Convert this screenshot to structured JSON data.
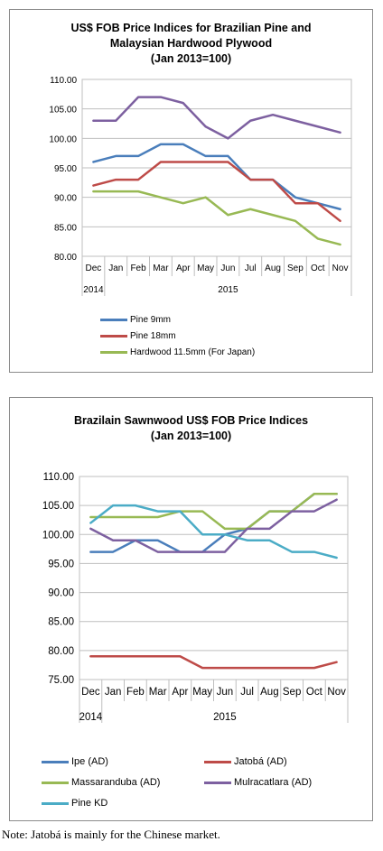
{
  "chart_data": [
    {
      "type": "line",
      "title_lines": [
        "US$ FOB Price Indices for Brazilian Pine and",
        "Malaysian Hardwood Plywood",
        "(Jan 2013=100)"
      ],
      "categories": [
        "Dec",
        "Jan",
        "Feb",
        "Mar",
        "Apr",
        "May",
        "Jun",
        "Jul",
        "Aug",
        "Sep",
        "Oct",
        "Nov"
      ],
      "year_labels": [
        "2014",
        "2015"
      ],
      "ylim": [
        80,
        110
      ],
      "yticks": [
        "110.00",
        "105.00",
        "100.00",
        "95.00",
        "90.00",
        "85.00",
        "80.00"
      ],
      "grid": true,
      "legend_position": "bottom",
      "series": [
        {
          "name": "Pine 9mm",
          "color": "#4a7ebb",
          "values": [
            96,
            97,
            97,
            99,
            99,
            97,
            97,
            93,
            93,
            90,
            89,
            88
          ]
        },
        {
          "name": "Pine 18mm",
          "color": "#be4b48",
          "values": [
            92,
            93,
            93,
            96,
            96,
            96,
            96,
            93,
            93,
            89,
            89,
            86
          ]
        },
        {
          "name": "Hardwood 11.5mm (For Japan)",
          "color": "#98b954",
          "values": [
            91,
            91,
            91,
            90,
            89,
            90,
            87,
            88,
            87,
            86,
            83,
            82
          ]
        },
        {
          "name": "",
          "color": "#7d60a0",
          "values": [
            103,
            103,
            107,
            107,
            106,
            102,
            100,
            103,
            104,
            103,
            102,
            101
          ]
        }
      ]
    },
    {
      "type": "line",
      "title_lines": [
        "Brazilain Sawnwood US$ FOB Price Indices",
        "(Jan 2013=100)"
      ],
      "categories": [
        "Dec",
        "Jan",
        "Feb",
        "Mar",
        "Apr",
        "May",
        "Jun",
        "Jul",
        "Aug",
        "Sep",
        "Oct",
        "Nov"
      ],
      "year_labels": [
        "2014",
        "2015"
      ],
      "ylim": [
        75,
        110
      ],
      "yticks": [
        "110.00",
        "105.00",
        "100.00",
        "95.00",
        "90.00",
        "85.00",
        "80.00",
        "75.00"
      ],
      "grid": true,
      "legend_position": "bottom",
      "series": [
        {
          "name": "Ipe (AD)",
          "color": "#4a7ebb",
          "values": [
            97,
            97,
            99,
            99,
            97,
            97,
            100,
            101,
            104,
            104,
            107,
            107
          ]
        },
        {
          "name": "Jatobá (AD)",
          "color": "#be4b48",
          "values": [
            79,
            79,
            79,
            79,
            79,
            77,
            77,
            77,
            77,
            77,
            77,
            78
          ]
        },
        {
          "name": "Massaranduba (AD)",
          "color": "#98b954",
          "values": [
            103,
            103,
            103,
            103,
            104,
            104,
            101,
            101,
            104,
            104,
            107,
            107
          ]
        },
        {
          "name": "Mulracatlara (AD)",
          "color": "#7d60a0",
          "values": [
            101,
            99,
            99,
            97,
            97,
            97,
            97,
            101,
            101,
            104,
            104,
            106
          ]
        },
        {
          "name": "Pine KD",
          "color": "#4bacc6",
          "values": [
            102,
            105,
            105,
            104,
            104,
            100,
            100,
            99,
            99,
            97,
            97,
            96
          ]
        }
      ]
    }
  ],
  "note": "Note: Jatobá is mainly for the Chinese market."
}
